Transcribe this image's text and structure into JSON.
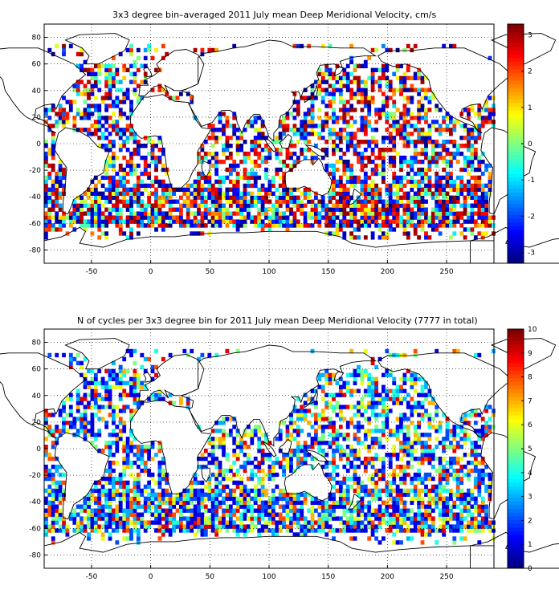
{
  "figure": {
    "panels": [
      {
        "title": "3x3 degree bin–averaged 2011 July mean Deep Meridional Velocity, cm/s",
        "colorbar": {
          "min": -3.3,
          "max": 3.3,
          "ticks": [
            "-3",
            "-2",
            "-1",
            "0",
            "1",
            "2",
            "3"
          ],
          "tick_values": [
            -3,
            -2,
            -1,
            0,
            1,
            2,
            3
          ]
        }
      },
      {
        "title": "N of cycles per 3x3 degree bin for 2011 July mean Deep Meridional Velocity (7777 in total)",
        "colorbar": {
          "min": 0,
          "max": 10,
          "ticks": [
            "0",
            "1",
            "2",
            "3",
            "4",
            "5",
            "6",
            "7",
            "8",
            "9",
            "10"
          ],
          "tick_values": [
            0,
            1,
            2,
            3,
            4,
            5,
            6,
            7,
            8,
            9,
            10
          ]
        }
      }
    ],
    "x_ticks": [
      "-50",
      "0",
      "50",
      "100",
      "150",
      "200",
      "250"
    ],
    "x_tick_values": [
      -50,
      0,
      50,
      100,
      150,
      200,
      250
    ],
    "y_ticks": [
      "80",
      "60",
      "40",
      "20",
      "0",
      "-20",
      "-40",
      "-60",
      "-80"
    ],
    "y_tick_values": [
      80,
      60,
      40,
      20,
      0,
      -20,
      -40,
      -60,
      -80
    ],
    "xlim": [
      -90,
      290
    ],
    "ylim": [
      -90,
      90
    ],
    "grid": "dotted",
    "colormap": "jet"
  }
}
